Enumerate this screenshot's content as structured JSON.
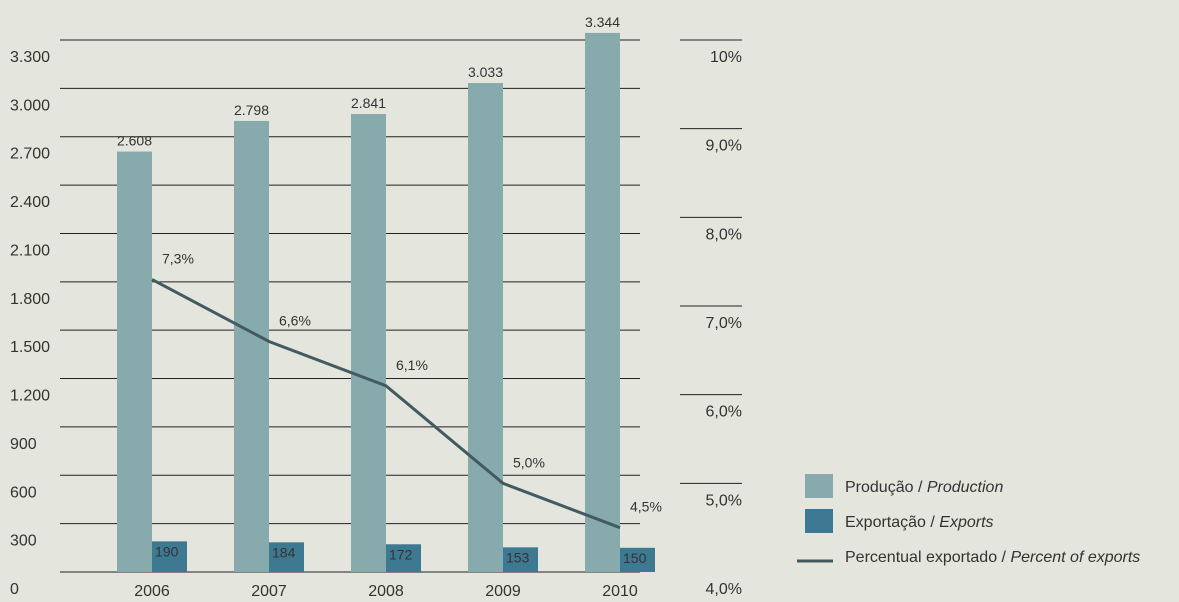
{
  "chart_data": {
    "type": "bar",
    "categories": [
      "2006",
      "2007",
      "2008",
      "2009",
      "2010"
    ],
    "series": [
      {
        "name": "Produção",
        "name_en": "Production",
        "values": [
          2608,
          2798,
          2841,
          3033,
          3344
        ],
        "labels": [
          "2.608",
          "2.798",
          "2.841",
          "3.033",
          "3.344"
        ],
        "color": "#87aaad"
      },
      {
        "name": "Exportação",
        "name_en": "Exports",
        "values": [
          190,
          184,
          172,
          153,
          150
        ],
        "labels": [
          "190",
          "184",
          "172",
          "153",
          "150"
        ],
        "color": "#3d7a92"
      }
    ],
    "line": {
      "name": "Percentual exportado",
      "name_en": "Percent of exports",
      "values": [
        7.3,
        6.6,
        6.1,
        5.0,
        4.5
      ],
      "labels": [
        "7,3%",
        "6,6%",
        "6,1%",
        "5,0%",
        "4,5%"
      ],
      "color": "#435b60"
    },
    "y_left": {
      "ylim": [
        0,
        3300
      ],
      "ticks": [
        0,
        300,
        600,
        900,
        1200,
        1500,
        1800,
        2100,
        2400,
        2700,
        3000,
        3300
      ],
      "tick_labels": [
        "0",
        "300",
        "600",
        "900",
        "1.200",
        "1.500",
        "1.800",
        "2.100",
        "2.400",
        "2.700",
        "3.000",
        "3.300"
      ]
    },
    "y_right": {
      "ylim": [
        4.0,
        10.0
      ],
      "ticks": [
        4,
        5,
        6,
        7,
        8,
        9,
        10
      ],
      "tick_labels": [
        "4,0%",
        "5,0%",
        "6,0%",
        "7,0%",
        "8,0%",
        "9,0%",
        "10%"
      ]
    },
    "grid": true,
    "legend": "bottom-right",
    "legend_separator": " / "
  }
}
